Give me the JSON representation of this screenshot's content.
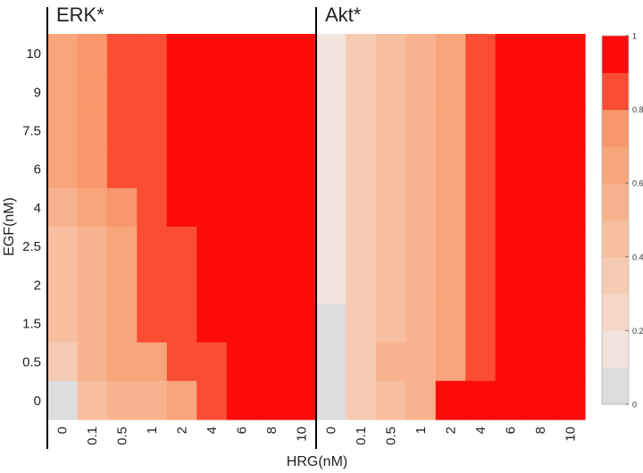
{
  "chart_data": {
    "type": "heatmap",
    "shared_axes": {
      "xlabel": "HRG(nM)",
      "ylabel": "EGF(nM)",
      "x_categories": [
        "0",
        "0.1",
        "0.5",
        "1",
        "2",
        "4",
        "6",
        "8",
        "10"
      ],
      "y_categories_top_to_bottom": [
        "10",
        "9",
        "7.5",
        "6",
        "4",
        "2.5",
        "2",
        "1.5",
        "0.5",
        "0"
      ]
    },
    "colorbar": {
      "range": [
        0,
        1
      ],
      "ticks": [
        "0",
        "0.2",
        "0.4",
        "0.6",
        "0.8",
        "1"
      ],
      "levels": [
        "#dcdcdc",
        "#f2e3dc",
        "#f5d6c8",
        "#f6cbb3",
        "#f7bf9f",
        "#f8b38e",
        "#f9a57b",
        "#f9966b",
        "#fb4d33",
        "#fe0b0b"
      ]
    },
    "panels": [
      {
        "title": "ERK*",
        "levels_rows_top_to_bottom": [
          [
            6,
            7,
            8,
            8,
            9,
            9,
            9,
            9,
            9
          ],
          [
            6,
            7,
            8,
            8,
            9,
            9,
            9,
            9,
            9
          ],
          [
            6,
            7,
            8,
            8,
            9,
            9,
            9,
            9,
            9
          ],
          [
            6,
            7,
            8,
            8,
            9,
            9,
            9,
            9,
            9
          ],
          [
            5,
            6,
            7,
            8,
            9,
            9,
            9,
            9,
            9
          ],
          [
            4,
            5,
            6,
            8,
            8,
            9,
            9,
            9,
            9
          ],
          [
            4,
            5,
            6,
            8,
            8,
            9,
            9,
            9,
            9
          ],
          [
            4,
            5,
            6,
            8,
            8,
            9,
            9,
            9,
            9
          ],
          [
            3,
            5,
            6,
            6,
            8,
            8,
            9,
            9,
            9
          ],
          [
            0,
            4,
            5,
            5,
            6,
            8,
            9,
            9,
            9
          ]
        ]
      },
      {
        "title": "Akt*",
        "levels_rows_top_to_bottom": [
          [
            1,
            3,
            4,
            5,
            6,
            8,
            9,
            9,
            9
          ],
          [
            1,
            3,
            4,
            5,
            6,
            8,
            9,
            9,
            9
          ],
          [
            1,
            3,
            4,
            5,
            6,
            8,
            9,
            9,
            9
          ],
          [
            1,
            3,
            4,
            5,
            6,
            8,
            9,
            9,
            9
          ],
          [
            1,
            3,
            4,
            5,
            6,
            8,
            9,
            9,
            9
          ],
          [
            1,
            3,
            4,
            5,
            6,
            8,
            9,
            9,
            9
          ],
          [
            1,
            3,
            4,
            5,
            6,
            8,
            9,
            9,
            9
          ],
          [
            0,
            3,
            4,
            5,
            6,
            8,
            9,
            9,
            9
          ],
          [
            0,
            3,
            5,
            5,
            6,
            8,
            9,
            9,
            9
          ],
          [
            0,
            3,
            4,
            5,
            9,
            9,
            9,
            9,
            9
          ]
        ]
      }
    ]
  }
}
